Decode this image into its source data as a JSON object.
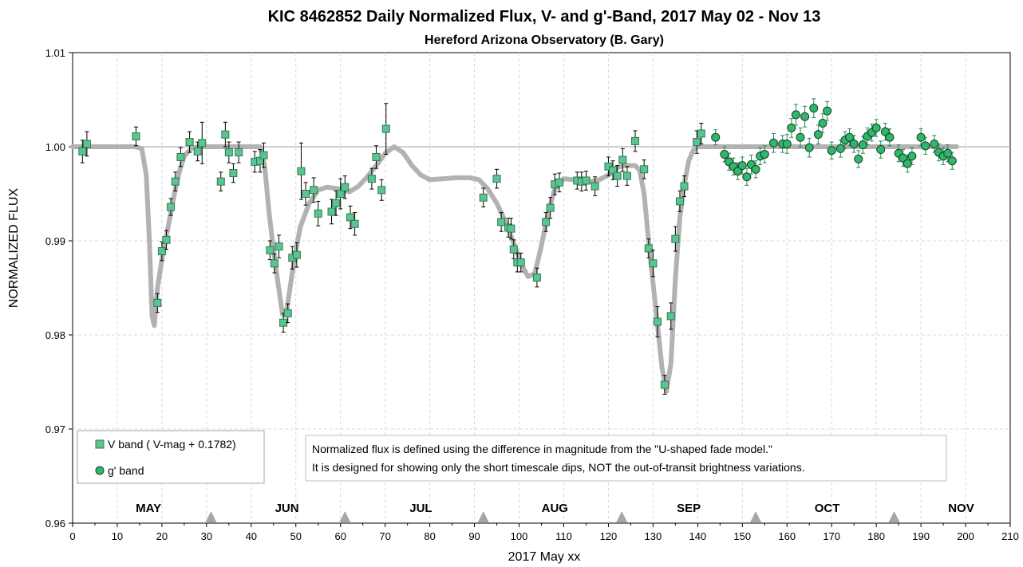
{
  "chart_data": {
    "type": "scatter",
    "title": "KIC 8462852 Daily Normalized Flux, V- and g'-Band, 2017 May 02 - Nov 13",
    "subtitle": "Hereford Arizona Observatory (B. Gary)",
    "xlabel": "2017 May xx",
    "ylabel": "NORMALIZED FLUX",
    "xlim": [
      0,
      210
    ],
    "ylim": [
      0.96,
      1.01
    ],
    "x_ticks": [
      0,
      10,
      20,
      30,
      40,
      50,
      60,
      70,
      80,
      90,
      100,
      110,
      120,
      130,
      140,
      150,
      160,
      170,
      180,
      190,
      200,
      210
    ],
    "y_ticks": [
      0.96,
      0.97,
      0.98,
      0.99,
      1.0,
      1.01
    ],
    "y_tick_labels": [
      "0.96",
      "0.97",
      "0.98",
      "0.99",
      "1.00",
      "1.01"
    ],
    "grid": true,
    "legend_position": "bottom-left",
    "month_labels": [
      {
        "label": "MAY",
        "x": 17
      },
      {
        "label": "JUN",
        "x": 48
      },
      {
        "label": "JUL",
        "x": 78
      },
      {
        "label": "AUG",
        "x": 108
      },
      {
        "label": "SEP",
        "x": 138
      },
      {
        "label": "OCT",
        "x": 169
      },
      {
        "label": "NOV",
        "x": 199
      }
    ],
    "month_boundaries": [
      31,
      61,
      92,
      123,
      153,
      184
    ],
    "note_lines": [
      "Normalized flux is defined using the difference in magnitude from the \"U-shaped  fade model.\"",
      "It is designed for showing only the short timescale dips, NOT the out-of-transit brightness variations."
    ],
    "reference_line": 1.0,
    "colors": {
      "v_band_fill": "#5cc490",
      "v_band_stroke": "#2f7a52",
      "g_band_fill": "#2db86a",
      "g_band_stroke": "#1d3d2a",
      "error_v": "#000000",
      "error_g": "#1f8a5a",
      "model_line": "#b2b2b2",
      "grid": "#d9d9d9"
    },
    "series": [
      {
        "name": "V band ( V-mag + 0.1782)",
        "marker": "square",
        "points": [
          [
            2.2,
            0.9995,
            0.0012
          ],
          [
            3.2,
            1.0003,
            0.0013
          ],
          [
            14.2,
            1.0011,
            0.001
          ],
          [
            19.0,
            0.9834,
            0.001
          ],
          [
            20.0,
            0.9889,
            0.001
          ],
          [
            21.0,
            0.9901,
            0.001
          ],
          [
            22.0,
            0.9936,
            0.0009
          ],
          [
            23.0,
            0.9963,
            0.001
          ],
          [
            24.2,
            0.9989,
            0.001
          ],
          [
            26.2,
            1.0005,
            0.0011
          ],
          [
            28.0,
            0.9995,
            0.001
          ],
          [
            29.0,
            1.0004,
            0.0022
          ],
          [
            33.2,
            0.9963,
            0.001
          ],
          [
            34.2,
            1.0013,
            0.0013
          ],
          [
            35.0,
            0.9994,
            0.0011
          ],
          [
            36.0,
            0.9972,
            0.001
          ],
          [
            37.2,
            0.9994,
            0.0011
          ],
          [
            40.8,
            0.9984,
            0.0011
          ],
          [
            42.0,
            0.9985,
            0.0012
          ],
          [
            42.8,
            0.9991,
            0.0013
          ],
          [
            44.2,
            0.989,
            0.001
          ],
          [
            45.2,
            0.9876,
            0.001
          ],
          [
            46.2,
            0.9894,
            0.0012
          ],
          [
            47.2,
            0.9813,
            0.001
          ],
          [
            48.2,
            0.9823,
            0.001
          ],
          [
            49.2,
            0.9882,
            0.0012
          ],
          [
            50.2,
            0.9885,
            0.0013
          ],
          [
            51.2,
            0.9974,
            0.003
          ],
          [
            52.2,
            0.995,
            0.0012
          ],
          [
            54.0,
            0.9954,
            0.0013
          ],
          [
            55.0,
            0.9929,
            0.0013
          ],
          [
            58.0,
            0.9931,
            0.0013
          ],
          [
            59.0,
            0.994,
            0.0013
          ],
          [
            60.0,
            0.995,
            0.0016
          ],
          [
            61.0,
            0.9957,
            0.0012
          ],
          [
            62.2,
            0.9925,
            0.0012
          ],
          [
            63.2,
            0.9918,
            0.0012
          ],
          [
            67.0,
            0.9966,
            0.0011
          ],
          [
            68.0,
            0.9989,
            0.0012
          ],
          [
            69.2,
            0.9954,
            0.0011
          ],
          [
            70.2,
            1.0019,
            0.0027
          ],
          [
            92.0,
            0.9946,
            0.001
          ],
          [
            95.0,
            0.9966,
            0.001
          ],
          [
            96.0,
            0.992,
            0.001
          ],
          [
            97.6,
            0.9914,
            0.001
          ],
          [
            98.2,
            0.9913,
            0.0011
          ],
          [
            98.8,
            0.9891,
            0.001
          ],
          [
            99.6,
            0.9877,
            0.001
          ],
          [
            100.4,
            0.9877,
            0.001
          ],
          [
            104.0,
            0.9861,
            0.001
          ],
          [
            106.0,
            0.992,
            0.001
          ],
          [
            107.0,
            0.9935,
            0.0011
          ],
          [
            108.0,
            0.996,
            0.0011
          ],
          [
            109.0,
            0.9962,
            0.001
          ],
          [
            113.0,
            0.9964,
            0.0009
          ],
          [
            114.0,
            0.9963,
            0.001
          ],
          [
            115.0,
            0.9964,
            0.001
          ],
          [
            117.0,
            0.9958,
            0.001
          ],
          [
            120.0,
            0.9979,
            0.001
          ],
          [
            121.0,
            0.9975,
            0.001
          ],
          [
            122.0,
            0.9969,
            0.0011
          ],
          [
            123.2,
            0.9986,
            0.0012
          ],
          [
            124.2,
            0.9969,
            0.001
          ],
          [
            126.0,
            1.0006,
            0.0011
          ],
          [
            128.0,
            0.9976,
            0.001
          ],
          [
            129.0,
            0.9892,
            0.001
          ],
          [
            130.0,
            0.9876,
            0.0014
          ],
          [
            131.0,
            0.9814,
            0.0016
          ],
          [
            132.6,
            0.9747,
            0.001
          ],
          [
            134.0,
            0.982,
            0.0014
          ],
          [
            135.0,
            0.9902,
            0.0013
          ],
          [
            136.0,
            0.9942,
            0.0011
          ],
          [
            137.0,
            0.9958,
            0.0011
          ],
          [
            139.8,
            1.0005,
            0.0012
          ],
          [
            140.8,
            1.0014,
            0.0011
          ]
        ]
      },
      {
        "name": "g' band",
        "marker": "circle",
        "points": [
          [
            144.0,
            1.001,
            0.0008
          ],
          [
            146.0,
            0.9992,
            0.0008
          ],
          [
            147.0,
            0.9984,
            0.0009
          ],
          [
            148.0,
            0.9979,
            0.0009
          ],
          [
            149.0,
            0.9974,
            0.0009
          ],
          [
            150.0,
            0.998,
            0.0009
          ],
          [
            151.0,
            0.9968,
            0.0009
          ],
          [
            152.0,
            0.9981,
            0.001
          ],
          [
            153.0,
            0.9976,
            0.0009
          ],
          [
            154.0,
            0.999,
            0.0009
          ],
          [
            155.0,
            0.9992,
            0.0009
          ],
          [
            157.0,
            1.0004,
            0.001
          ],
          [
            159.0,
            1.0003,
            0.0009
          ],
          [
            160.0,
            1.0003,
            0.001
          ],
          [
            161.0,
            1.002,
            0.001
          ],
          [
            162.0,
            1.0034,
            0.0011
          ],
          [
            163.0,
            1.001,
            0.001
          ],
          [
            164.0,
            1.0032,
            0.0011
          ],
          [
            165.0,
            0.9999,
            0.001
          ],
          [
            166.0,
            1.0041,
            0.001
          ],
          [
            167.0,
            1.0013,
            0.001
          ],
          [
            168.0,
            1.0025,
            0.001
          ],
          [
            169.0,
            1.0038,
            0.001
          ],
          [
            170.0,
            0.9996,
            0.0009
          ],
          [
            172.0,
            0.9998,
            0.0009
          ],
          [
            173.0,
            1.0007,
            0.0009
          ],
          [
            174.0,
            1.001,
            0.0009
          ],
          [
            175.0,
            1.0003,
            0.0009
          ],
          [
            176.0,
            0.9987,
            0.0009
          ],
          [
            177.0,
            1.0002,
            0.0009
          ],
          [
            178.0,
            1.0011,
            0.0009
          ],
          [
            179.0,
            1.0015,
            0.0009
          ],
          [
            180.0,
            1.002,
            0.0009
          ],
          [
            181.0,
            0.9997,
            0.0009
          ],
          [
            182.0,
            1.0016,
            0.0009
          ],
          [
            183.0,
            1.001,
            0.0009
          ],
          [
            185.0,
            0.9993,
            0.0009
          ],
          [
            186.0,
            0.9988,
            0.0009
          ],
          [
            187.0,
            0.9982,
            0.0009
          ],
          [
            188.0,
            0.999,
            0.0009
          ],
          [
            190.0,
            1.001,
            0.0009
          ],
          [
            191.0,
            1.0001,
            0.0009
          ],
          [
            193.0,
            1.0003,
            0.0009
          ],
          [
            194.0,
            0.9994,
            0.0009
          ],
          [
            195.0,
            0.999,
            0.0009
          ],
          [
            196.0,
            0.9993,
            0.0009
          ],
          [
            197.0,
            0.9985,
            0.0009
          ]
        ]
      },
      {
        "name": "",
        "marker": "line",
        "points": [
          [
            0,
            1.0
          ],
          [
            14,
            1.0
          ],
          [
            15.5,
            0.9998
          ],
          [
            16.5,
            0.997
          ],
          [
            17.2,
            0.99
          ],
          [
            17.8,
            0.982
          ],
          [
            18.3,
            0.981
          ],
          [
            19.0,
            0.985
          ],
          [
            20.0,
            0.988
          ],
          [
            21.0,
            0.9905
          ],
          [
            22.0,
            0.993
          ],
          [
            23.0,
            0.9955
          ],
          [
            24.0,
            0.9975
          ],
          [
            25.0,
            0.999
          ],
          [
            26.5,
            0.9998
          ],
          [
            28,
            1.0
          ],
          [
            42,
            1.0
          ],
          [
            43.0,
            0.998
          ],
          [
            44.0,
            0.993
          ],
          [
            45.0,
            0.989
          ],
          [
            46.0,
            0.9855
          ],
          [
            47.0,
            0.9822
          ],
          [
            48.0,
            0.9828
          ],
          [
            49.0,
            0.986
          ],
          [
            50.0,
            0.989
          ],
          [
            51.0,
            0.9915
          ],
          [
            53.0,
            0.994
          ],
          [
            55.0,
            0.9954
          ],
          [
            57.0,
            0.9957
          ],
          [
            60.0,
            0.9955
          ],
          [
            62.0,
            0.9952
          ],
          [
            64.0,
            0.9958
          ],
          [
            66.0,
            0.9968
          ],
          [
            68.0,
            0.998
          ],
          [
            70.0,
            0.9993
          ],
          [
            72.0,
            1.0
          ],
          [
            74.0,
            0.9994
          ],
          [
            76.0,
            0.998
          ],
          [
            78.0,
            0.997
          ],
          [
            80.0,
            0.9965
          ],
          [
            83.0,
            0.9966
          ],
          [
            86.0,
            0.9967
          ],
          [
            89.0,
            0.9967
          ],
          [
            91.0,
            0.9965
          ],
          [
            93.0,
            0.9955
          ],
          [
            95.0,
            0.994
          ],
          [
            97.0,
            0.992
          ],
          [
            99.0,
            0.9895
          ],
          [
            100.5,
            0.9875
          ],
          [
            102.0,
            0.9862
          ],
          [
            103.5,
            0.9865
          ],
          [
            105.0,
            0.9895
          ],
          [
            106.5,
            0.993
          ],
          [
            108.0,
            0.9955
          ],
          [
            110.0,
            0.9966
          ],
          [
            112.0,
            0.9965
          ],
          [
            115.0,
            0.9962
          ],
          [
            118.0,
            0.9965
          ],
          [
            120.0,
            0.997
          ],
          [
            122.0,
            0.9978
          ],
          [
            124.0,
            0.998
          ],
          [
            126.0,
            0.998
          ],
          [
            127.0,
            0.9975
          ],
          [
            128.0,
            0.995
          ],
          [
            129.0,
            0.99
          ],
          [
            130.0,
            0.9855
          ],
          [
            131.0,
            0.981
          ],
          [
            132.0,
            0.9765
          ],
          [
            133.0,
            0.974
          ],
          [
            134.0,
            0.977
          ],
          [
            135.0,
            0.986
          ],
          [
            136.0,
            0.9925
          ],
          [
            137.0,
            0.996
          ],
          [
            138.0,
            0.9985
          ],
          [
            139.0,
            0.9996
          ],
          [
            140.0,
            1.0
          ],
          [
            198.0,
            1.0
          ]
        ]
      }
    ]
  }
}
